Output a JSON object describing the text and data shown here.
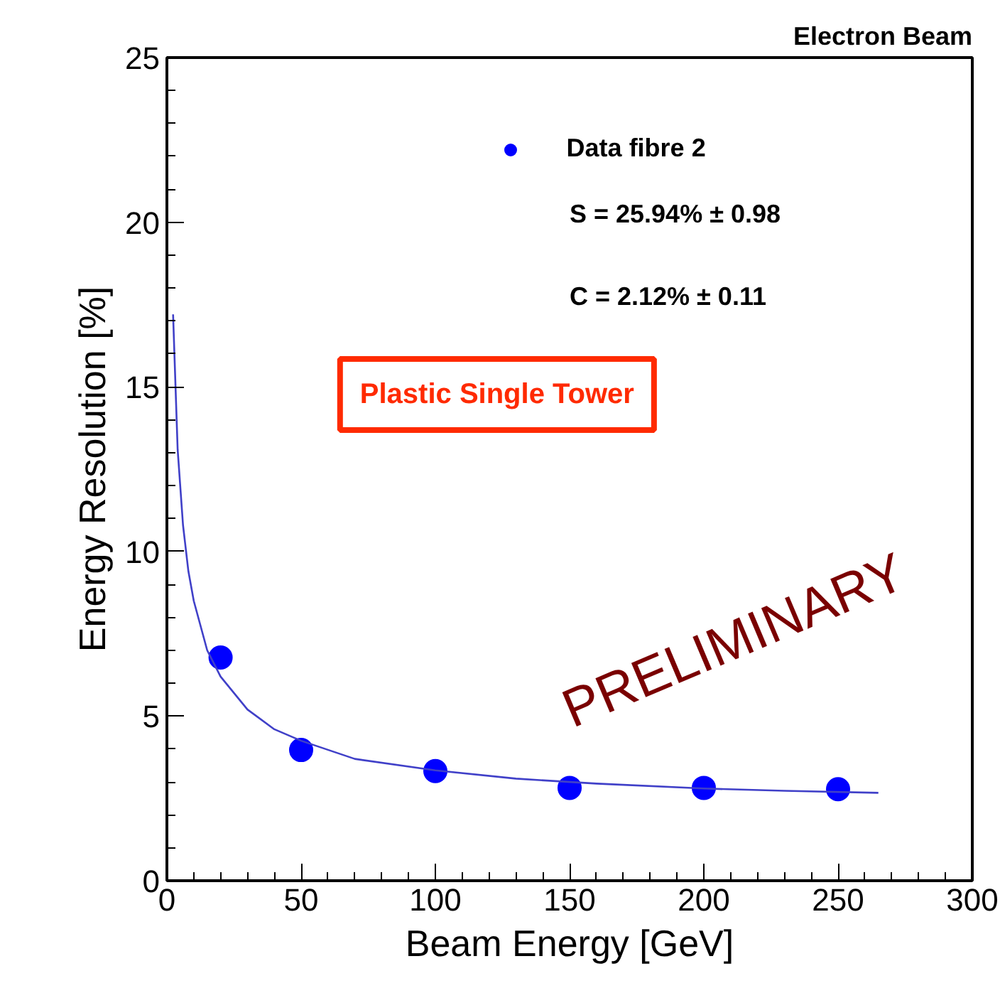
{
  "chart_data": {
    "type": "scatter",
    "title": "Electron Beam",
    "xlabel": "Beam Energy [GeV]",
    "ylabel": "Energy Resolution [%]",
    "xlim": [
      0,
      300
    ],
    "ylim": [
      0,
      25
    ],
    "xticks": [
      0,
      50,
      100,
      150,
      200,
      250,
      300
    ],
    "yticks": [
      0,
      5,
      10,
      15,
      20,
      25
    ],
    "grid": false,
    "legend": "top right",
    "marker": "circle",
    "series": [
      {
        "name": "Data fibre 2",
        "color": "#0000ff",
        "x": [
          20,
          50,
          100,
          150,
          200,
          250
        ],
        "values": [
          6.78,
          3.97,
          3.33,
          2.82,
          2.82,
          2.78
        ]
      },
      {
        "type": "line",
        "color": "#4040c8",
        "marker": "none",
        "x": [
          2.3,
          4,
          6,
          8,
          10,
          15,
          20,
          30,
          40,
          50,
          70,
          100,
          130,
          160,
          200,
          230,
          265
        ],
        "values": [
          17.2,
          13.1,
          10.8,
          9.4,
          8.5,
          7.0,
          6.2,
          5.2,
          4.6,
          4.25,
          3.7,
          3.35,
          3.1,
          2.95,
          2.8,
          2.73,
          2.67
        ]
      }
    ],
    "annotations": [
      "S =  25.94%  ± 0.98",
      "C =  2.12%   ± 0.11",
      "Plastic Single Tower",
      "PRELIMINARY"
    ]
  }
}
